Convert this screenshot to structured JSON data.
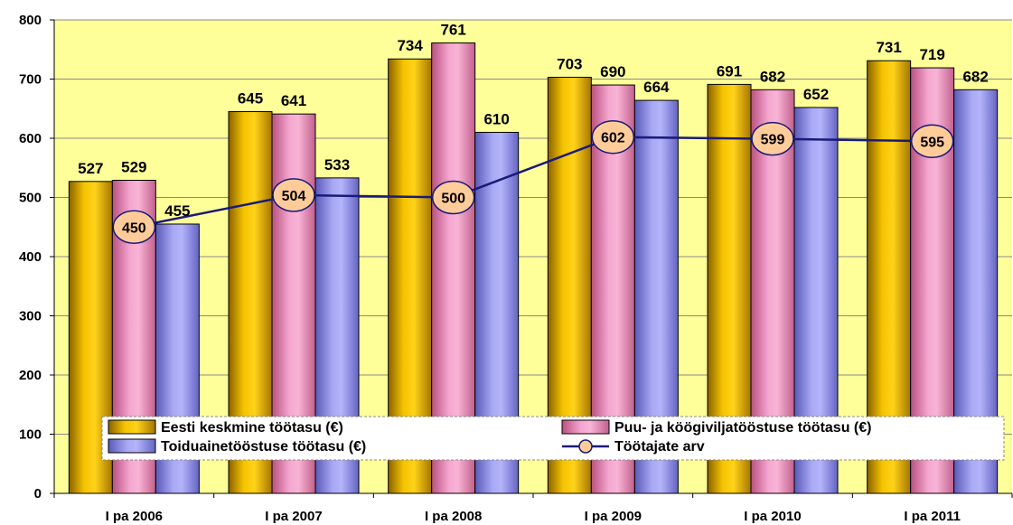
{
  "chart_data": {
    "type": "bar",
    "categories": [
      "I pa 2006",
      "I pa 2007",
      "I pa 2008",
      "I pa 2009",
      "I pa 2010",
      "I pa 2011"
    ],
    "series": [
      {
        "name": "Eesti keskmine töötasu (€)",
        "values": [
          527,
          645,
          734,
          703,
          691,
          731
        ],
        "color": "#E0A800"
      },
      {
        "name": "Puu- ja köögiviljatööstuse töötasu (€)",
        "values": [
          529,
          641,
          761,
          690,
          682,
          719
        ],
        "color": "#E088B8"
      },
      {
        "name": "Toiduainetööstuse töötasu (€)",
        "values": [
          455,
          533,
          610,
          664,
          652,
          682
        ],
        "color": "#8E8EE8"
      }
    ],
    "line_series": {
      "name": "Töötajate arv",
      "values": [
        450,
        504,
        500,
        602,
        599,
        595
      ],
      "color": "#1a1a7a",
      "marker_color": "#FFCC99"
    },
    "ylim": [
      0,
      800
    ],
    "yticks": [
      "0",
      "100",
      "200",
      "300",
      "400",
      "500",
      "600",
      "700",
      "800"
    ],
    "grid": true,
    "legend_position": "bottom-inside",
    "plot_background": "#FFFF99"
  }
}
